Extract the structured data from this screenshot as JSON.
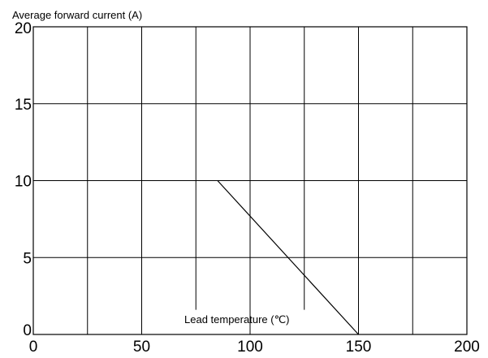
{
  "chart_data": {
    "type": "line",
    "title": "",
    "ylabel": "Average forward current (A)",
    "xlabel": "Lead temperature (℃)",
    "xlim": [
      0,
      200
    ],
    "ylim": [
      0,
      20
    ],
    "x_ticks": [
      0,
      50,
      100,
      150,
      200
    ],
    "y_ticks": [
      0,
      5,
      10,
      15,
      20
    ],
    "x_grid": [
      25,
      50,
      75,
      100,
      125,
      150,
      175
    ],
    "y_grid": [
      5,
      10,
      15
    ],
    "grid": true,
    "legend": "none",
    "series": [
      {
        "x": [
          85,
          150
        ],
        "y": [
          10,
          0
        ]
      }
    ]
  }
}
